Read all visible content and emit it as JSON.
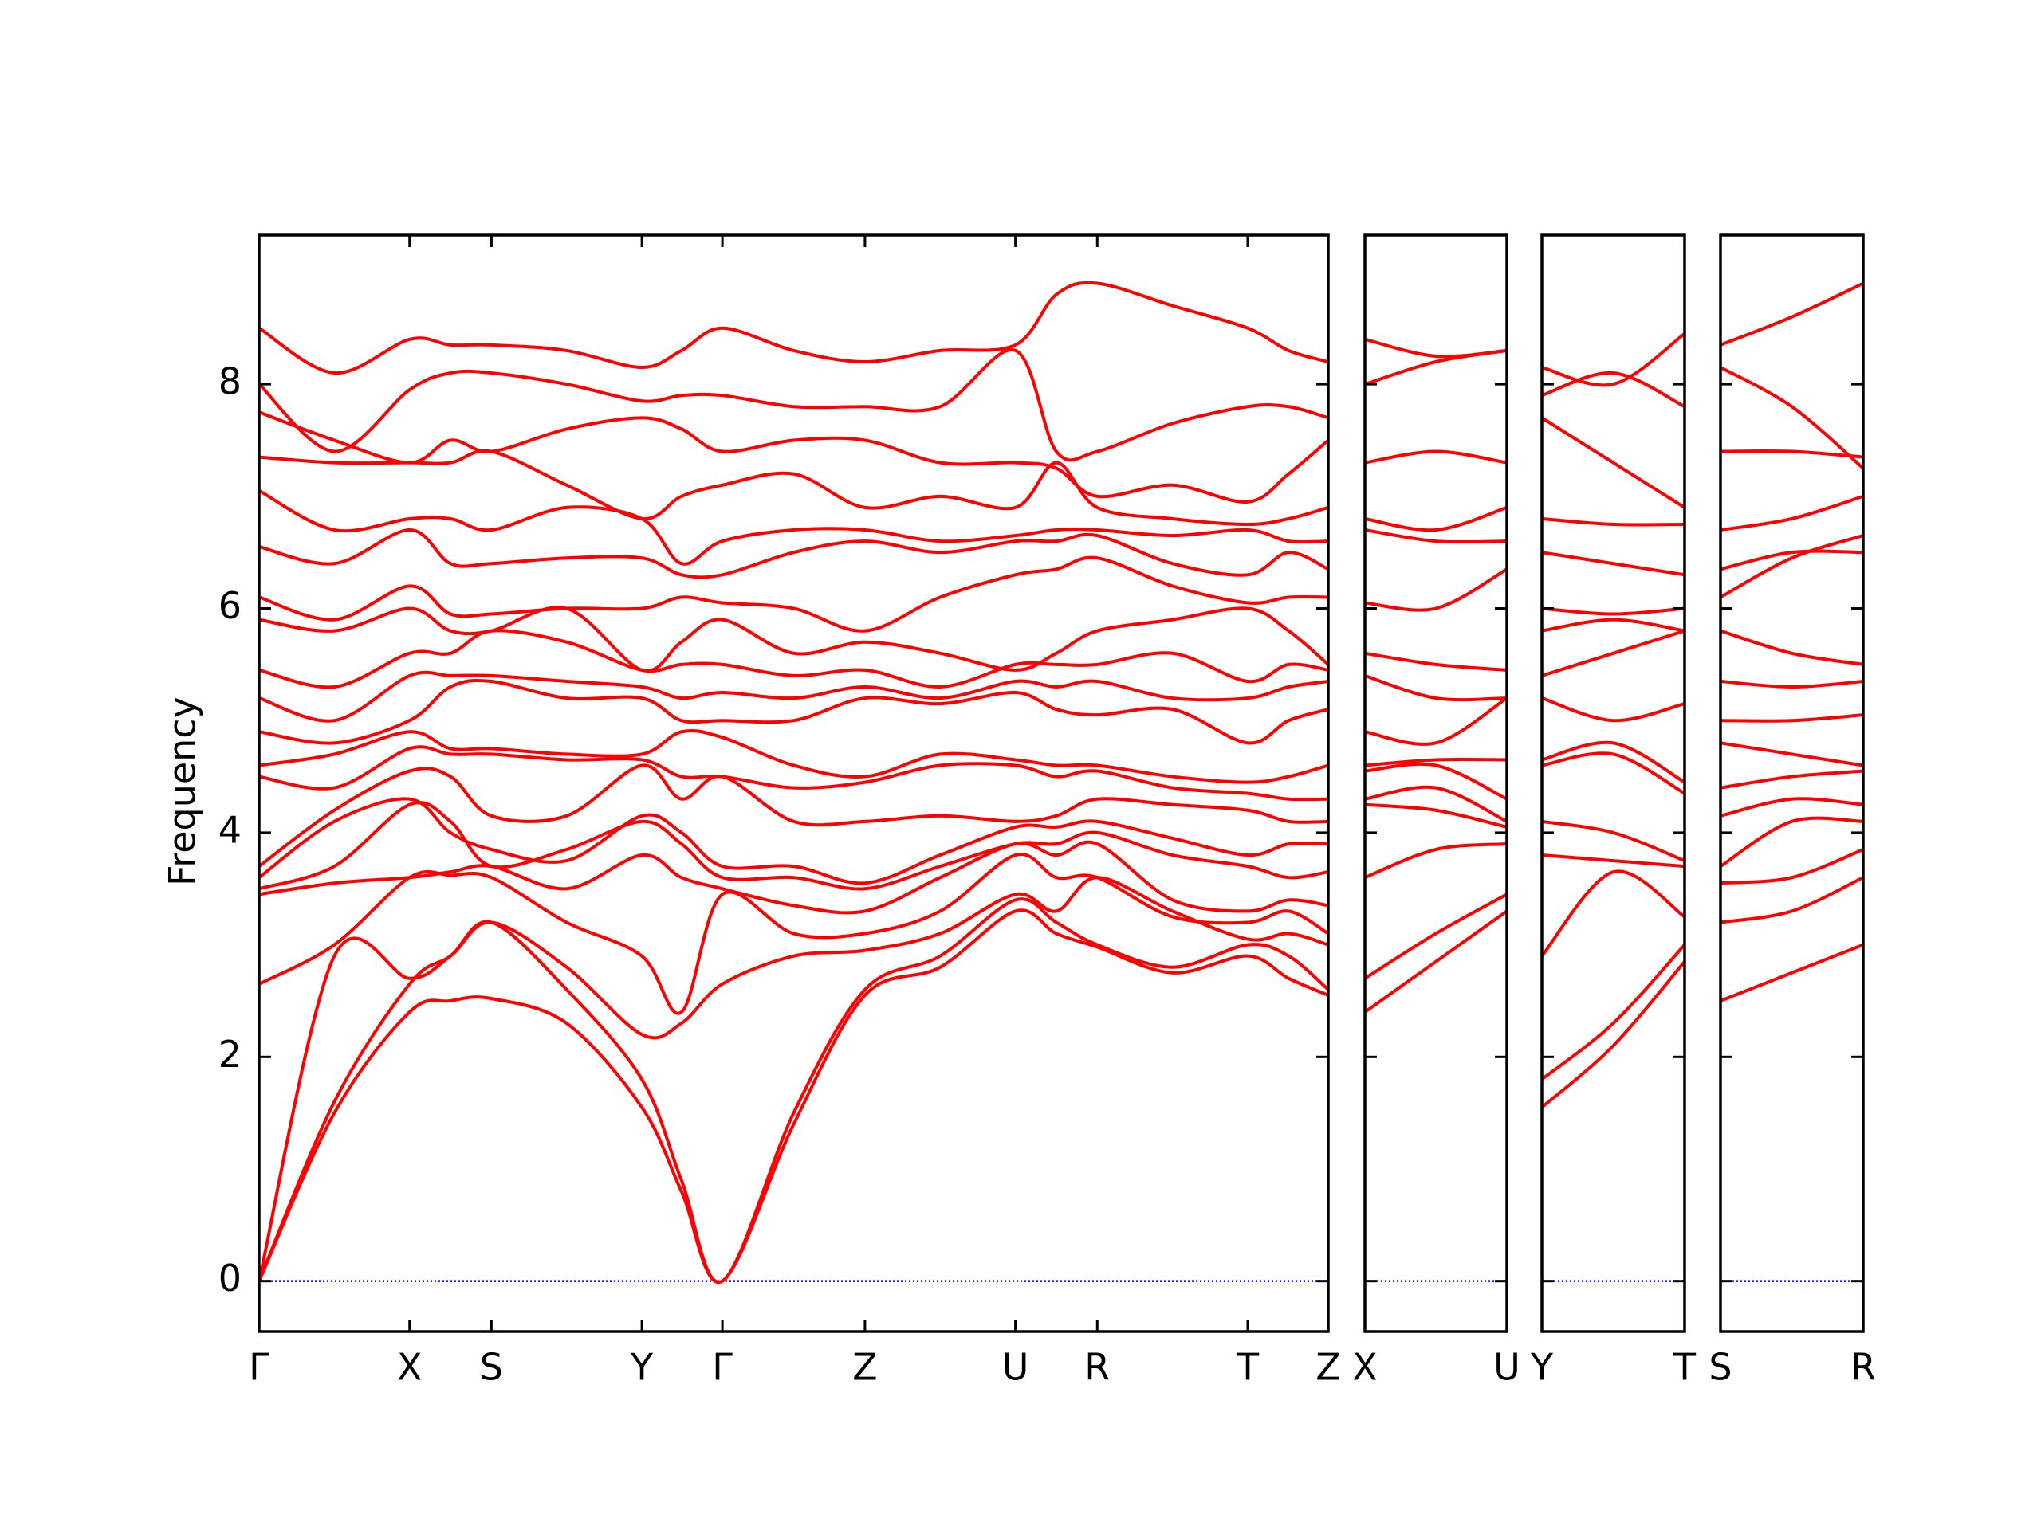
{
  "chart_data": {
    "type": "line",
    "ylabel": "Frequency",
    "color": "#ff0000",
    "ylim": [
      -0.45,
      9.33
    ],
    "yticks": [
      0,
      2,
      4,
      6,
      8
    ],
    "reference_line": {
      "value": 0,
      "color": "#0000ff"
    },
    "panels": [
      {
        "xlim": [
          0,
          8.1
        ],
        "x": [
          0,
          0.57,
          1.14,
          1.45,
          1.76,
          2.33,
          2.9,
          3.2,
          3.51,
          4.05,
          4.59,
          5.16,
          5.73,
          6.04,
          6.35,
          6.92,
          7.49,
          7.8,
          8.1
        ],
        "xticks": [
          {
            "value": 0,
            "label": "Γ"
          },
          {
            "value": 1.14,
            "label": "X"
          },
          {
            "value": 1.76,
            "label": "S"
          },
          {
            "value": 2.9,
            "label": "Y"
          },
          {
            "value": 3.51,
            "label": "Γ"
          },
          {
            "value": 4.59,
            "label": "Z"
          },
          {
            "value": 5.73,
            "label": "U"
          },
          {
            "value": 6.35,
            "label": "R"
          },
          {
            "value": 7.49,
            "label": "T"
          },
          {
            "value": 8.1,
            "label": "Z"
          }
        ],
        "series": [
          {
            "values": [
              0,
              1.5,
              2.4,
              2.5,
              2.52,
              2.3,
              1.55,
              0.8,
              0,
              1.4,
              2.55,
              2.8,
              3.3,
              3.1,
              2.98,
              2.75,
              2.9,
              2.7,
              2.55
            ]
          },
          {
            "values": [
              0,
              1.6,
              2.65,
              2.9,
              3.2,
              2.6,
              1.8,
              0.9,
              0,
              1.5,
              2.6,
              2.9,
              3.4,
              3.2,
              3.0,
              2.8,
              3.0,
              2.9,
              2.6
            ]
          },
          {
            "values": [
              0,
              2.9,
              2.7,
              2.9,
              3.2,
              2.8,
              2.2,
              2.3,
              2.65,
              2.9,
              2.95,
              3.1,
              3.45,
              3.3,
              3.6,
              3.3,
              3.05,
              3.1,
              3.0
            ]
          },
          {
            "values": [
              2.65,
              3.0,
              3.6,
              3.62,
              3.6,
              3.2,
              2.9,
              2.4,
              3.45,
              3.1,
              3.1,
              3.3,
              3.8,
              3.6,
              3.6,
              3.25,
              3.2,
              3.3,
              3.1
            ]
          },
          {
            "values": [
              3.45,
              3.55,
              3.6,
              3.65,
              3.7,
              3.5,
              3.8,
              3.6,
              3.5,
              3.35,
              3.3,
              3.6,
              3.9,
              3.8,
              3.9,
              3.4,
              3.3,
              3.4,
              3.35
            ]
          },
          {
            "values": [
              3.5,
              3.7,
              4.25,
              4.1,
              3.7,
              3.85,
              4.1,
              3.9,
              3.6,
              3.6,
              3.5,
              3.7,
              3.9,
              3.9,
              4.0,
              3.8,
              3.7,
              3.6,
              3.65
            ]
          },
          {
            "values": [
              3.6,
              4.1,
              4.3,
              4.0,
              3.85,
              3.75,
              4.15,
              4.0,
              3.7,
              3.7,
              3.55,
              3.8,
              4.05,
              4.05,
              4.1,
              3.95,
              3.8,
              3.9,
              3.9
            ]
          },
          {
            "values": [
              3.7,
              4.2,
              4.55,
              4.5,
              4.15,
              4.15,
              4.6,
              4.3,
              4.5,
              4.1,
              4.1,
              4.15,
              4.1,
              4.15,
              4.3,
              4.25,
              4.2,
              4.1,
              4.1
            ]
          },
          {
            "values": [
              4.5,
              4.4,
              4.75,
              4.7,
              4.7,
              4.65,
              4.65,
              4.5,
              4.5,
              4.4,
              4.45,
              4.6,
              4.6,
              4.5,
              4.55,
              4.4,
              4.35,
              4.3,
              4.3
            ]
          },
          {
            "values": [
              4.6,
              4.7,
              4.9,
              4.75,
              4.75,
              4.7,
              4.7,
              4.9,
              4.85,
              4.6,
              4.5,
              4.7,
              4.65,
              4.6,
              4.6,
              4.5,
              4.45,
              4.5,
              4.6
            ]
          },
          {
            "values": [
              4.9,
              4.8,
              5.0,
              5.3,
              5.35,
              5.2,
              5.2,
              5.0,
              5.0,
              5.0,
              5.2,
              5.15,
              5.25,
              5.1,
              5.05,
              5.1,
              4.8,
              5.0,
              5.1
            ]
          },
          {
            "values": [
              5.2,
              5.0,
              5.4,
              5.4,
              5.4,
              5.35,
              5.3,
              5.2,
              5.25,
              5.2,
              5.3,
              5.2,
              5.35,
              5.3,
              5.35,
              5.2,
              5.2,
              5.3,
              5.35
            ]
          },
          {
            "values": [
              5.45,
              5.3,
              5.6,
              5.6,
              5.8,
              5.7,
              5.45,
              5.5,
              5.5,
              5.4,
              5.45,
              5.3,
              5.5,
              5.5,
              5.5,
              5.6,
              5.35,
              5.5,
              5.45
            ]
          },
          {
            "values": [
              5.9,
              5.8,
              6.0,
              5.8,
              5.8,
              6.0,
              5.45,
              5.7,
              5.9,
              5.6,
              5.7,
              5.6,
              5.45,
              5.6,
              5.8,
              5.9,
              6.0,
              5.8,
              5.5
            ]
          },
          {
            "values": [
              6.1,
              5.9,
              6.2,
              5.95,
              5.95,
              6.0,
              6.0,
              6.1,
              6.05,
              6.0,
              5.8,
              6.1,
              6.3,
              6.35,
              6.45,
              6.2,
              6.05,
              6.1,
              6.1
            ]
          },
          {
            "values": [
              6.55,
              6.4,
              6.7,
              6.4,
              6.4,
              6.45,
              6.45,
              6.3,
              6.3,
              6.5,
              6.6,
              6.5,
              6.6,
              6.6,
              6.65,
              6.4,
              6.3,
              6.5,
              6.35
            ]
          },
          {
            "values": [
              7.05,
              6.7,
              6.8,
              6.8,
              6.7,
              6.9,
              6.8,
              6.4,
              6.6,
              6.7,
              6.7,
              6.6,
              6.65,
              6.7,
              6.7,
              6.65,
              6.7,
              6.6,
              6.6
            ]
          },
          {
            "values": [
              7.35,
              7.3,
              7.3,
              7.3,
              7.4,
              7.1,
              6.8,
              7.0,
              7.1,
              7.2,
              6.9,
              7.0,
              6.9,
              7.3,
              6.9,
              6.8,
              6.75,
              6.8,
              6.9
            ]
          },
          {
            "values": [
              7.75,
              7.5,
              7.3,
              7.5,
              7.4,
              7.6,
              7.7,
              7.6,
              7.4,
              7.5,
              7.5,
              7.3,
              7.3,
              7.25,
              7.0,
              7.1,
              6.95,
              7.2,
              7.5
            ]
          },
          {
            "values": [
              8.0,
              7.4,
              7.95,
              8.1,
              8.1,
              8.0,
              7.85,
              7.9,
              7.9,
              7.8,
              7.8,
              7.8,
              8.3,
              7.4,
              7.4,
              7.65,
              7.8,
              7.8,
              7.7
            ]
          },
          {
            "values": [
              8.5,
              8.1,
              8.4,
              8.35,
              8.35,
              8.3,
              8.15,
              8.3,
              8.5,
              8.3,
              8.2,
              8.3,
              8.35,
              8.8,
              8.9,
              8.7,
              8.5,
              8.3,
              8.2
            ]
          }
        ]
      },
      {
        "xlim": [
          0,
          1.07
        ],
        "x": [
          0,
          0.535,
          1.07
        ],
        "xticks": [
          {
            "value": 0,
            "label": "X"
          },
          {
            "value": 1.07,
            "label": "U"
          }
        ],
        "series": [
          {
            "values": [
              2.4,
              2.85,
              3.3
            ]
          },
          {
            "values": [
              2.7,
              3.1,
              3.45
            ]
          },
          {
            "values": [
              3.6,
              3.85,
              3.9
            ]
          },
          {
            "values": [
              4.25,
              4.2,
              4.05
            ]
          },
          {
            "values": [
              4.3,
              4.4,
              4.1
            ]
          },
          {
            "values": [
              4.55,
              4.6,
              4.3
            ]
          },
          {
            "values": [
              4.6,
              4.65,
              4.65
            ]
          },
          {
            "values": [
              4.9,
              4.8,
              5.2
            ]
          },
          {
            "values": [
              5.4,
              5.2,
              5.2
            ]
          },
          {
            "values": [
              5.6,
              5.5,
              5.45
            ]
          },
          {
            "values": [
              6.05,
              6.0,
              6.35
            ]
          },
          {
            "values": [
              6.7,
              6.6,
              6.6
            ]
          },
          {
            "values": [
              6.8,
              6.7,
              6.9
            ]
          },
          {
            "values": [
              7.3,
              7.4,
              7.3
            ]
          },
          {
            "values": [
              8.0,
              8.2,
              8.3
            ]
          },
          {
            "values": [
              8.4,
              8.25,
              8.3
            ]
          }
        ]
      },
      {
        "xlim": [
          0,
          1.08
        ],
        "x": [
          0,
          0.54,
          1.08
        ],
        "xticks": [
          {
            "value": 0,
            "label": "Y"
          },
          {
            "value": 1.08,
            "label": "T"
          }
        ],
        "series": [
          {
            "values": [
              1.55,
              2.1,
              2.85
            ]
          },
          {
            "values": [
              1.8,
              2.3,
              3.0
            ]
          },
          {
            "values": [
              2.9,
              3.65,
              3.25
            ]
          },
          {
            "values": [
              3.8,
              3.75,
              3.7
            ]
          },
          {
            "values": [
              4.1,
              4.0,
              3.75
            ]
          },
          {
            "values": [
              4.6,
              4.7,
              4.35
            ]
          },
          {
            "values": [
              4.65,
              4.8,
              4.45
            ]
          },
          {
            "values": [
              5.2,
              5.0,
              5.15
            ]
          },
          {
            "values": [
              5.4,
              5.6,
              5.8
            ]
          },
          {
            "values": [
              5.8,
              5.9,
              5.8
            ]
          },
          {
            "values": [
              6.0,
              5.95,
              6.0
            ]
          },
          {
            "values": [
              6.5,
              6.4,
              6.3
            ]
          },
          {
            "values": [
              6.8,
              6.75,
              6.75
            ]
          },
          {
            "values": [
              7.7,
              7.3,
              6.9
            ]
          },
          {
            "values": [
              7.9,
              8.1,
              7.8
            ]
          },
          {
            "values": [
              8.15,
              8.0,
              8.45
            ]
          }
        ]
      },
      {
        "xlim": [
          0,
          1.08
        ],
        "x": [
          0,
          0.54,
          1.08
        ],
        "xticks": [
          {
            "value": 0,
            "label": "S"
          },
          {
            "value": 1.08,
            "label": "R"
          }
        ],
        "series": [
          {
            "values": [
              2.5,
              2.75,
              3.0
            ]
          },
          {
            "values": [
              3.2,
              3.3,
              3.6
            ]
          },
          {
            "values": [
              3.55,
              3.6,
              3.85
            ]
          },
          {
            "values": [
              3.7,
              4.1,
              4.1
            ]
          },
          {
            "values": [
              4.15,
              4.3,
              4.25
            ]
          },
          {
            "values": [
              4.4,
              4.5,
              4.55
            ]
          },
          {
            "values": [
              4.8,
              4.7,
              4.6
            ]
          },
          {
            "values": [
              5.0,
              5.0,
              5.05
            ]
          },
          {
            "values": [
              5.35,
              5.3,
              5.35
            ]
          },
          {
            "values": [
              5.8,
              5.6,
              5.5
            ]
          },
          {
            "values": [
              6.1,
              6.45,
              6.65
            ]
          },
          {
            "values": [
              6.35,
              6.5,
              6.5
            ]
          },
          {
            "values": [
              6.7,
              6.8,
              7.0
            ]
          },
          {
            "values": [
              7.4,
              7.4,
              7.35
            ]
          },
          {
            "values": [
              8.15,
              7.8,
              7.25
            ]
          },
          {
            "values": [
              8.35,
              8.6,
              8.9
            ]
          }
        ]
      }
    ]
  }
}
